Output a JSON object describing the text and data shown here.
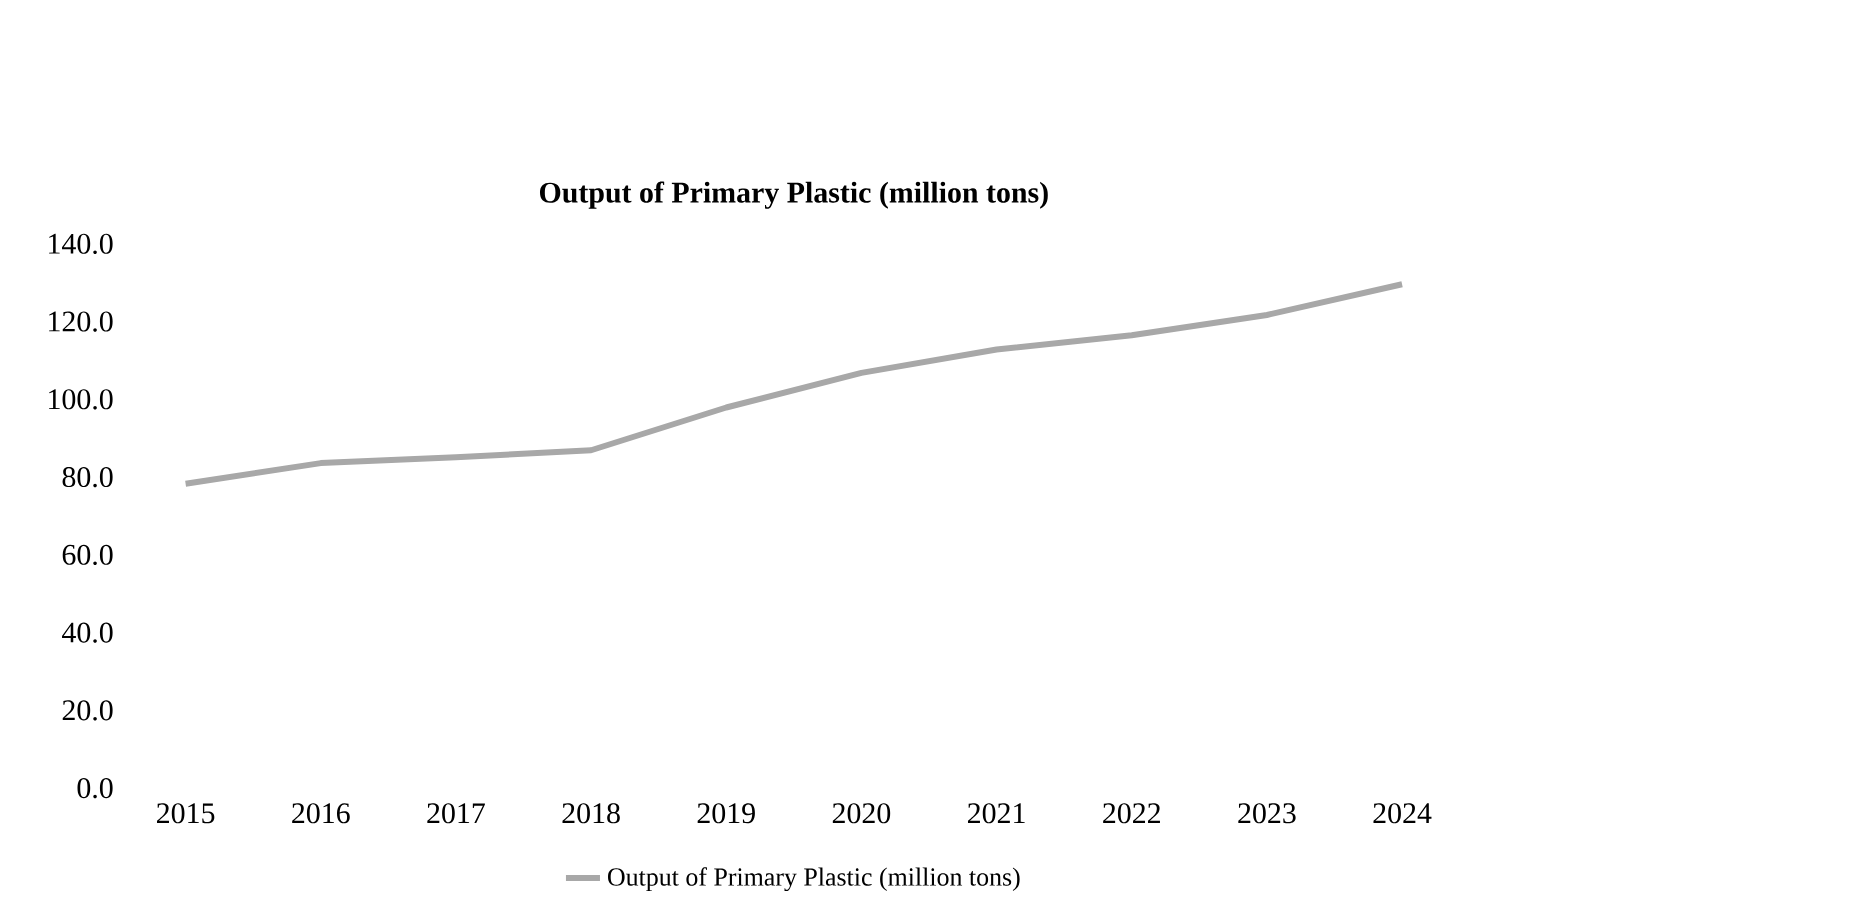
{
  "chart_data": {
    "type": "line",
    "title": "Output of Primary Plastic (million tons)",
    "categories": [
      "2015",
      "2016",
      "2017",
      "2018",
      "2019",
      "2020",
      "2021",
      "2022",
      "2023",
      "2024"
    ],
    "series": [
      {
        "name": "Output of Primary Plastic (million tons)",
        "color": "#a8a8a8",
        "values": [
          78.3,
          83.6,
          85.1,
          86.9,
          97.9,
          106.8,
          112.8,
          116.5,
          121.7,
          129.6
        ]
      }
    ],
    "ylim": [
      0,
      140
    ],
    "yticks": [
      {
        "value": 0,
        "label": "0.0"
      },
      {
        "value": 20,
        "label": "20.0"
      },
      {
        "value": 40,
        "label": "40.0"
      },
      {
        "value": 60,
        "label": "60.0"
      },
      {
        "value": 80,
        "label": "80.0"
      },
      {
        "value": 100,
        "label": "100.0"
      },
      {
        "value": 120,
        "label": "120.0"
      },
      {
        "value": 140,
        "label": "140.0"
      }
    ],
    "legend": "bottom",
    "grid": false,
    "marker": "none",
    "line_style": "solid"
  }
}
